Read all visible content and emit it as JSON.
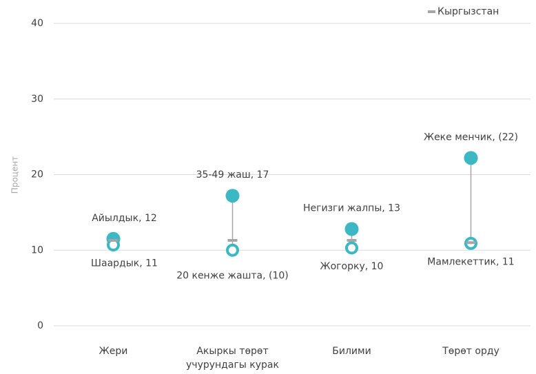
{
  "chart_data": {
    "type": "dotrange",
    "y_label": "Процент",
    "categories": [
      "Жери",
      "Акыркы төрөт\nучурундагы курак",
      "Билими",
      "Төрөт орду"
    ],
    "series": [
      {
        "color": "#3bb8c3",
        "marker": "filled",
        "values": [
          11.5,
          17.2,
          12.8,
          22.2
        ],
        "labels": [
          "Айылдык, 12",
          "35-49 жаш, 17",
          "Негизги жалпы, 13",
          "Жеке менчик, (22)"
        ]
      },
      {
        "color": "#3bb8c3",
        "marker": "hollow",
        "values": [
          10.7,
          10.0,
          10.3,
          10.9
        ],
        "labels": [
          "Шаардык, 11",
          "20 кенже жашта, (10)",
          "Жогорку, 10",
          "Мамлекеттик, 11"
        ]
      },
      {
        "name": "Кыргызстан",
        "color": "#a6a6a6",
        "marker": "dash",
        "values": [
          11.3,
          11.3,
          11.3,
          11.0
        ]
      }
    ],
    "ylim": [
      0,
      40
    ],
    "yticks": [
      0,
      10,
      20,
      30,
      40
    ],
    "grid": true,
    "legend": "top-right"
  }
}
